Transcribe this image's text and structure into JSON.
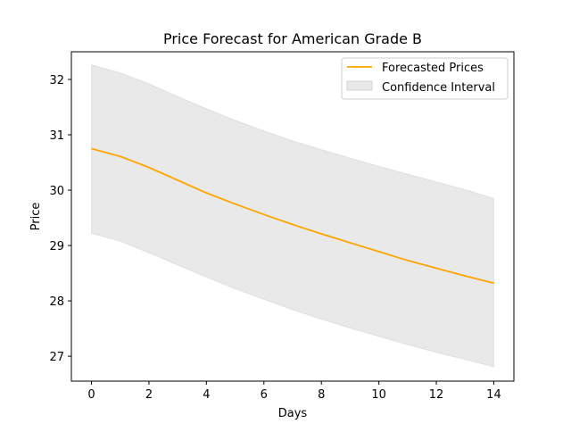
{
  "chart_data": {
    "type": "line",
    "title": "Price Forecast for American Grade B",
    "xlabel": "Days",
    "ylabel": "Price",
    "xlim": [
      -0.7,
      14.7
    ],
    "ylim": [
      26.55,
      32.5
    ],
    "x_ticks": [
      0,
      2,
      4,
      6,
      8,
      10,
      12,
      14
    ],
    "y_ticks": [
      27,
      28,
      29,
      30,
      31,
      32
    ],
    "grid": false,
    "legend_position": "top-right",
    "x": [
      0,
      1,
      2,
      3,
      4,
      5,
      6,
      7,
      8,
      9,
      10,
      11,
      12,
      13,
      14
    ],
    "series": [
      {
        "name": "Forecasted Prices",
        "color": "#ffa500",
        "values": [
          30.75,
          30.61,
          30.41,
          30.18,
          29.95,
          29.75,
          29.56,
          29.38,
          29.21,
          29.05,
          28.89,
          28.73,
          28.59,
          28.45,
          28.32
        ]
      }
    ],
    "confidence_interval": {
      "name": "Confidence Interval",
      "color": "#d3d3d3",
      "lower": [
        29.22,
        29.08,
        28.87,
        28.65,
        28.43,
        28.22,
        28.03,
        27.84,
        27.67,
        27.51,
        27.36,
        27.21,
        27.07,
        26.94,
        26.81
      ],
      "upper": [
        32.26,
        32.12,
        31.92,
        31.69,
        31.47,
        31.26,
        31.07,
        30.89,
        30.73,
        30.58,
        30.43,
        30.29,
        30.15,
        30.01,
        29.85
      ]
    }
  }
}
